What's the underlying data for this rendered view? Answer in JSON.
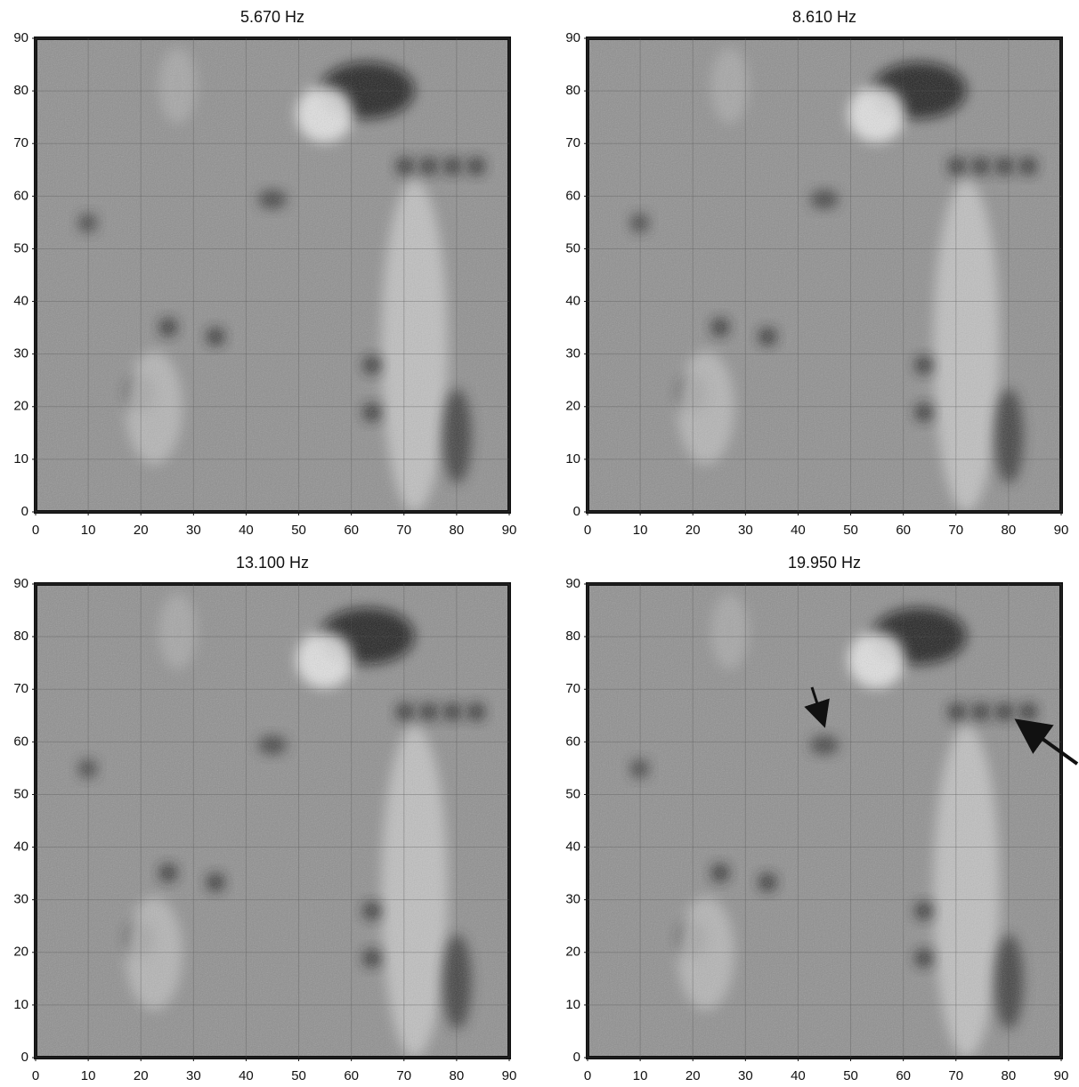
{
  "chart_data": [
    {
      "type": "image",
      "title": "5.670 Hz",
      "xlim": [
        0,
        90
      ],
      "ylim": [
        0,
        90
      ],
      "xticks": [
        0,
        10,
        20,
        30,
        40,
        50,
        60,
        70,
        80,
        90
      ],
      "yticks": [
        0,
        10,
        20,
        30,
        40,
        50,
        60,
        70,
        80,
        90
      ],
      "grid": true
    },
    {
      "type": "image",
      "title": "8.610 Hz",
      "xlim": [
        0,
        90
      ],
      "ylim": [
        0,
        90
      ],
      "xticks": [
        0,
        10,
        20,
        30,
        40,
        50,
        60,
        70,
        80,
        90
      ],
      "yticks": [
        0,
        10,
        20,
        30,
        40,
        50,
        60,
        70,
        80,
        90
      ],
      "grid": true
    },
    {
      "type": "image",
      "title": "13.100 Hz",
      "xlim": [
        0,
        90
      ],
      "ylim": [
        0,
        90
      ],
      "xticks": [
        0,
        10,
        20,
        30,
        40,
        50,
        60,
        70,
        80,
        90
      ],
      "yticks": [
        0,
        10,
        20,
        30,
        40,
        50,
        60,
        70,
        80,
        90
      ],
      "grid": true
    },
    {
      "type": "image",
      "title": "19.950 Hz",
      "xlim": [
        0,
        90
      ],
      "ylim": [
        0,
        90
      ],
      "xticks": [
        0,
        10,
        20,
        30,
        40,
        50,
        60,
        70,
        80,
        90
      ],
      "yticks": [
        0,
        10,
        20,
        30,
        40,
        50,
        60,
        70,
        80,
        90
      ],
      "grid": true
    }
  ]
}
